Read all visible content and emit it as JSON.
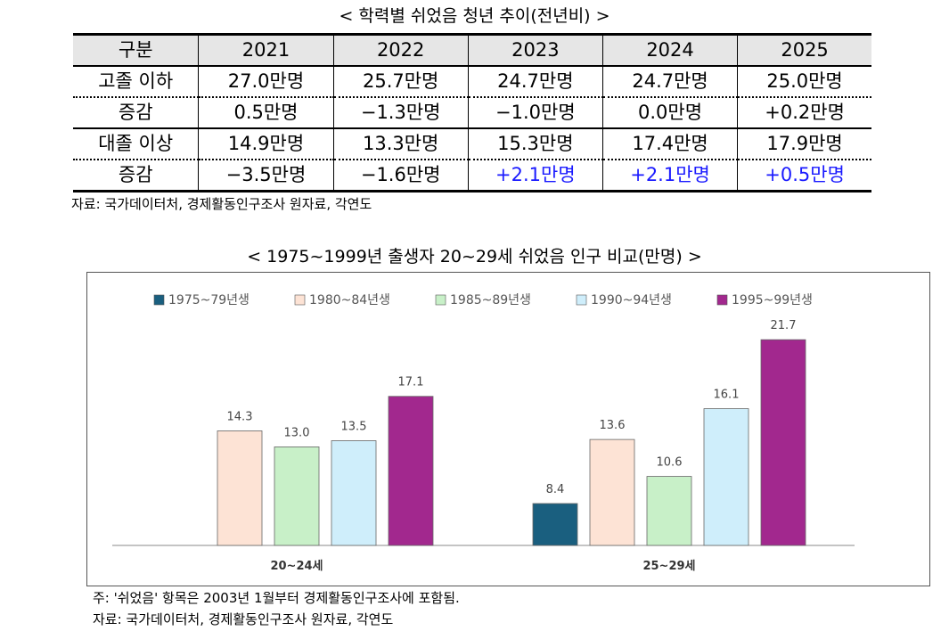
{
  "table": {
    "title": "< 학력별 쉬었음 청년 추이(전년비) >",
    "header": [
      "구분",
      "2021",
      "2022",
      "2023",
      "2024",
      "2025"
    ],
    "rows": [
      [
        "고졸 이하",
        "27.0만명",
        "25.7만명",
        "24.7만명",
        "24.7만명",
        "25.0만명"
      ],
      [
        "증감",
        "0.5만명",
        "−1.3만명",
        "−1.0만명",
        "0.0만명",
        "+0.2만명"
      ],
      [
        "대졸 이상",
        "14.9만명",
        "13.3만명",
        "15.3만명",
        "17.4만명",
        "17.9만명"
      ],
      [
        "증감",
        "−3.5만명",
        "−1.6만명",
        "+2.1만명",
        "+2.1만명",
        "+0.5만명"
      ]
    ],
    "source": "자료: 국가데이터처, 경제활동인구조사 원자료, 각연도"
  },
  "chart_data": {
    "type": "bar",
    "title": "< 1975~1999년 출생자 20~29세 쉬었음 인구 비교(만명) >",
    "categories": [
      "20~24세",
      "25~29세"
    ],
    "series": [
      {
        "name": "1975~79년생",
        "color": "#1a5f7f",
        "values": [
          null,
          8.4
        ],
        "value_labels": [
          null,
          "8.4"
        ]
      },
      {
        "name": "1980~84년생",
        "color": "#fde3d5",
        "values": [
          14.3,
          13.6
        ],
        "value_labels": [
          "14.3",
          "13.6"
        ]
      },
      {
        "name": "1985~89년생",
        "color": "#c8f0c8",
        "values": [
          13.0,
          10.6
        ],
        "value_labels": [
          "13.0",
          "10.6"
        ]
      },
      {
        "name": "1990~94년생",
        "color": "#cfeefb",
        "values": [
          13.5,
          16.1
        ],
        "value_labels": [
          "13.5",
          "16.1"
        ]
      },
      {
        "name": "1995~99년생",
        "color": "#a2288e",
        "values": [
          17.1,
          21.7
        ],
        "value_labels": [
          "17.1",
          "21.7"
        ]
      }
    ],
    "ylim": [
      5,
      22
    ]
  },
  "notes": [
    "주: '쉬었음' 항목은 2003년 1월부터 경제활동인구조사에 포함됨.",
    "자료: 국가데이터처, 경제활동인구조사 원자료, 각연도"
  ]
}
